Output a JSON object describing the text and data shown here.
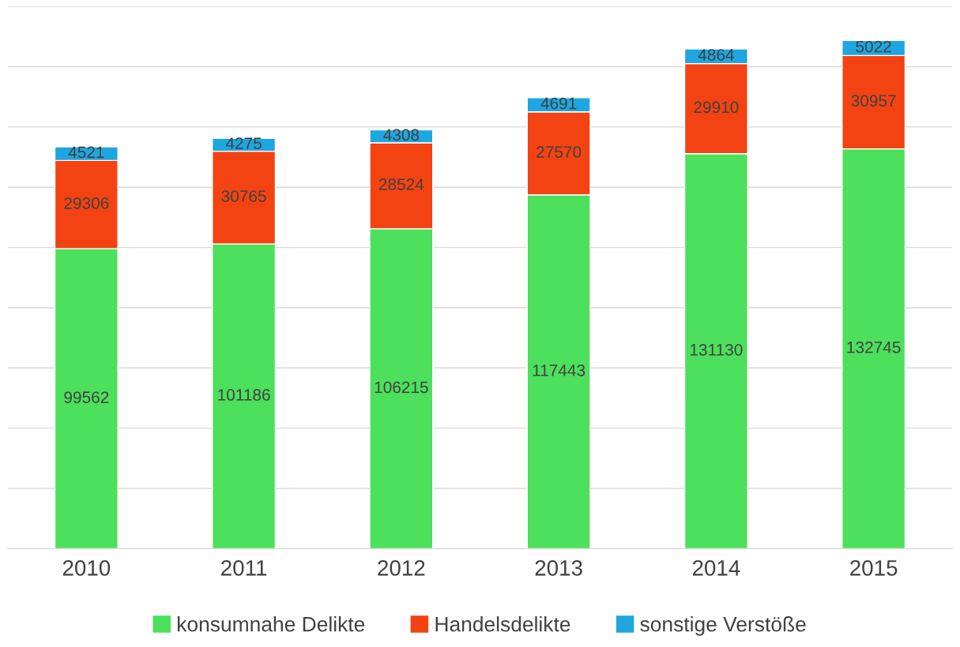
{
  "chart_data": {
    "type": "bar",
    "stacked": true,
    "categories": [
      "2010",
      "2011",
      "2012",
      "2013",
      "2014",
      "2015"
    ],
    "series": [
      {
        "name": "konsumnahe Delikte",
        "color": "#4ce05c",
        "values": [
          99562,
          101186,
          106215,
          117443,
          131130,
          132745
        ]
      },
      {
        "name": "Handelsdelikte",
        "color": "#f44312",
        "values": [
          29306,
          30765,
          28524,
          27570,
          29910,
          30957
        ]
      },
      {
        "name": "sonstige Verstöße",
        "color": "#1ea6e0",
        "values": [
          4521,
          4275,
          4308,
          4691,
          4864,
          5022
        ]
      }
    ],
    "ylim": [
      0,
      180000
    ],
    "yticks": [
      {
        "value": 0,
        "label": null
      },
      {
        "value": 20000,
        "label": null
      },
      {
        "value": 40000,
        "label": null
      },
      {
        "value": 60000,
        "label": null
      },
      {
        "value": 80000,
        "label": null
      },
      {
        "value": 100000,
        "label": null
      },
      {
        "value": 120000,
        "label": null
      },
      {
        "value": 140000,
        "label": null
      },
      {
        "value": 160000,
        "label": null
      },
      {
        "value": 180000,
        "label": null
      }
    ],
    "tick_labels": "x",
    "grid": "y",
    "legend": "bottom",
    "data_labels": true
  }
}
